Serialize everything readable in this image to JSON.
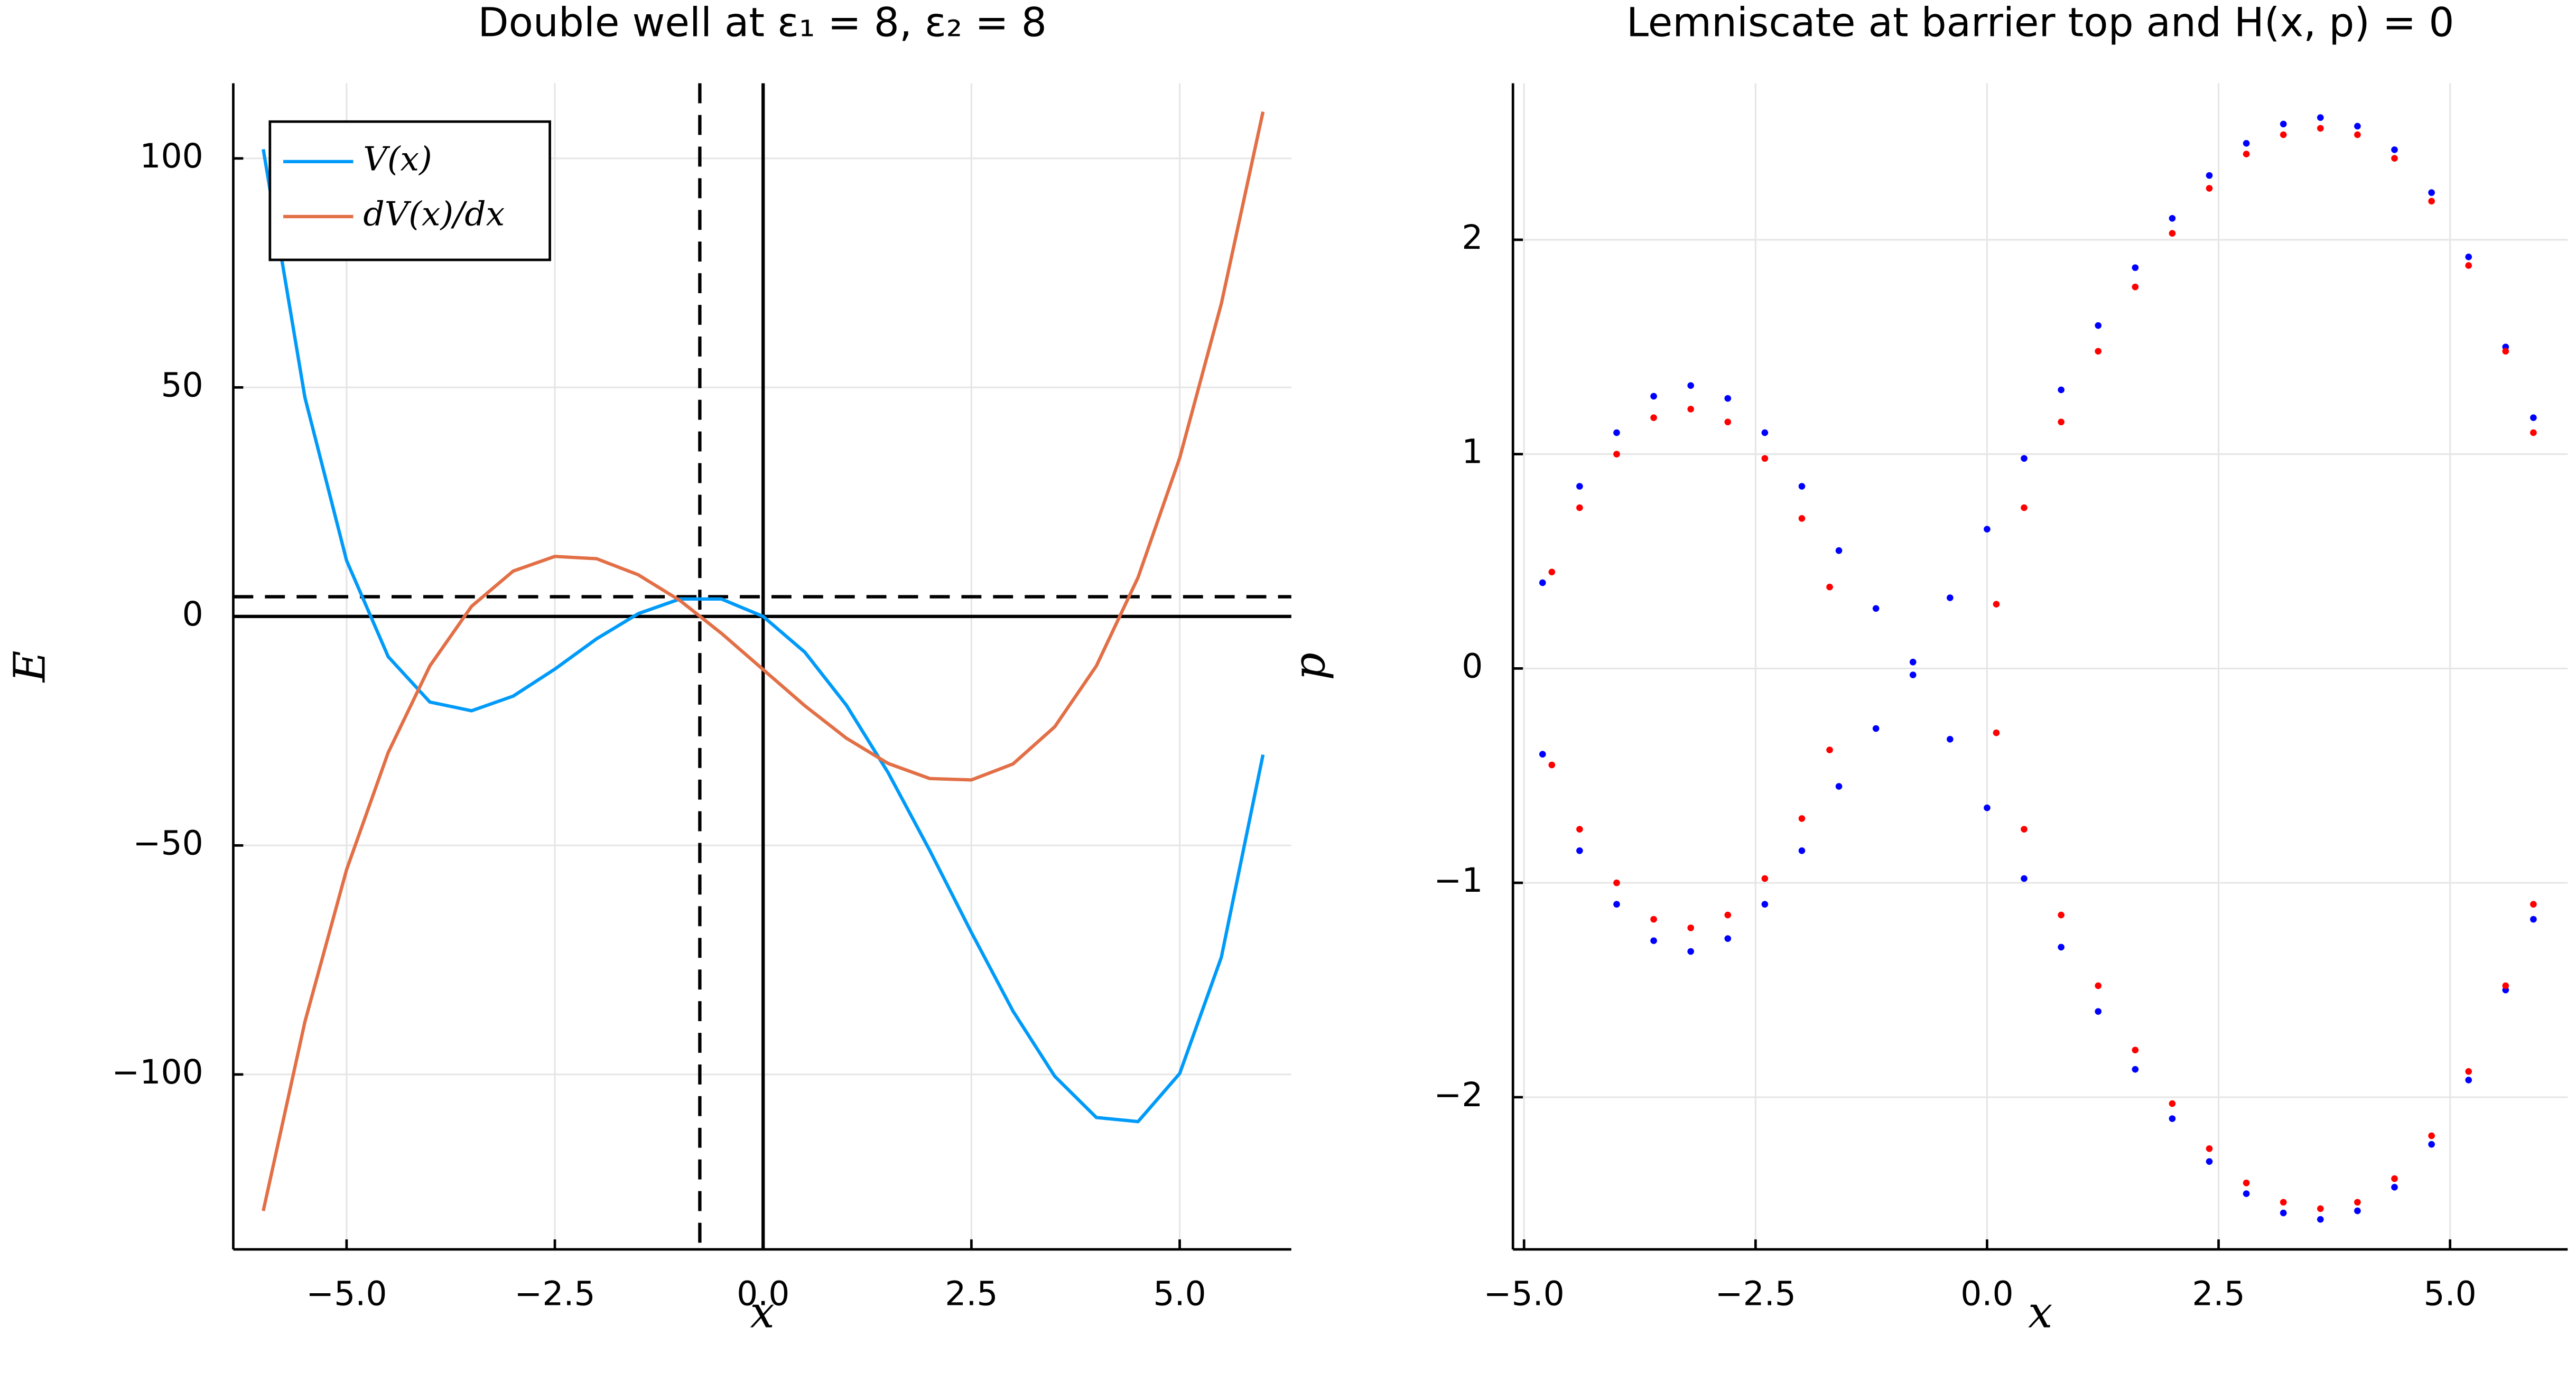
{
  "chart_data": [
    {
      "type": "line",
      "title": "Double well at ε₁ = 8, ε₂ = 8",
      "xlabel": "x",
      "ylabel": "E",
      "x": [
        -6,
        -5.5,
        -5,
        -4.5,
        -4,
        -3.5,
        -3,
        -2.5,
        -2,
        -1.5,
        -1,
        -0.5,
        0,
        0.5,
        1,
        1.5,
        2,
        2.5,
        3,
        3.5,
        4,
        4.5,
        5,
        5.5,
        6
      ],
      "series": [
        {
          "name": "V(x)",
          "color": "#009af9",
          "values": [
            102.0,
            47.8,
            12.2,
            -8.8,
            -18.7,
            -20.6,
            -17.4,
            -11.5,
            -4.9,
            0.6,
            3.8,
            3.8,
            0,
            -7.8,
            -19.4,
            -34.1,
            -51.1,
            -69.0,
            -86.2,
            -100.4,
            -109.4,
            -110.3,
            -99.8,
            -74.4,
            -30.2
          ]
        },
        {
          "name": "dV(x)/dx",
          "color": "#e26f46",
          "values": [
            -129.8,
            -88.5,
            -55.3,
            -29.7,
            -10.8,
            2.2,
            9.9,
            13.1,
            12.6,
            9.1,
            3.5,
            -3.7,
            -11.6,
            -19.5,
            -26.6,
            -32.1,
            -35.4,
            -35.7,
            -32.2,
            -24.1,
            -10.8,
            8.5,
            34.6,
            68.3,
            110.2
          ]
        }
      ],
      "reference_lines": [
        {
          "axis": "x",
          "value": -0.76,
          "dashed": true
        },
        {
          "axis": "x",
          "value": 0,
          "dashed": false
        },
        {
          "axis": "y",
          "value": 4.3,
          "dashed": true
        },
        {
          "axis": "y",
          "value": 0,
          "dashed": false
        }
      ],
      "xlim": [
        -6.36,
        6.34
      ],
      "ylim": [
        -138.2,
        116.4
      ],
      "xticks": [
        {
          "value": -5,
          "label": "−5.0"
        },
        {
          "value": -2.5,
          "label": "−2.5"
        },
        {
          "value": 0,
          "label": "0.0"
        },
        {
          "value": 2.5,
          "label": "2.5"
        },
        {
          "value": 5,
          "label": "5.0"
        }
      ],
      "yticks": [
        {
          "value": -100,
          "label": "−100"
        },
        {
          "value": -50,
          "label": "−50"
        },
        0,
        50,
        100
      ],
      "grid": true,
      "legend": "top-left"
    },
    {
      "type": "scatter",
      "title": "Lemniscate at barrier top and H(x, p) = 0",
      "xlabel": "x",
      "ylabel": "p",
      "series": [
        {
          "color": "#0000ff",
          "x": [
            -4.8,
            -4.4,
            -4.0,
            -3.6,
            -3.2,
            -2.8,
            -2.4,
            -2.0,
            -1.6,
            -1.2,
            -0.8,
            -0.4,
            0.0,
            0.4,
            0.8,
            1.2,
            1.6,
            2.0,
            2.4,
            2.8,
            3.2,
            3.6,
            4.0,
            4.4,
            4.8,
            5.2,
            5.6,
            5.9,
            -4.8,
            -4.4,
            -4.0,
            -3.6,
            -3.2,
            -2.8,
            -2.4,
            -2.0,
            -1.6,
            -1.2,
            -0.8,
            -0.4,
            0.0,
            0.4,
            0.8,
            1.2,
            1.6,
            2.0,
            2.4,
            2.8,
            3.2,
            3.6,
            4.0,
            4.4,
            4.8,
            5.2,
            5.6,
            5.9
          ],
          "values": [
            0.4,
            0.85,
            1.1,
            1.27,
            1.32,
            1.26,
            1.1,
            0.85,
            0.55,
            0.28,
            0.03,
            0.33,
            0.65,
            0.98,
            1.3,
            1.6,
            1.87,
            2.1,
            2.3,
            2.45,
            2.54,
            2.57,
            2.53,
            2.42,
            2.22,
            1.92,
            1.5,
            1.17,
            -0.4,
            -0.85,
            -1.1,
            -1.27,
            -1.32,
            -1.26,
            -1.1,
            -0.85,
            -0.55,
            -0.28,
            -0.03,
            -0.33,
            -0.65,
            -0.98,
            -1.3,
            -1.6,
            -1.87,
            -2.1,
            -2.3,
            -2.45,
            -2.54,
            -2.57,
            -2.53,
            -2.42,
            -2.22,
            -1.92,
            -1.5,
            -1.17
          ]
        },
        {
          "color": "#ff0000",
          "x": [
            -4.7,
            -4.4,
            -4.0,
            -3.6,
            -3.2,
            -2.8,
            -2.4,
            -2.0,
            -1.7,
            0.1,
            0.4,
            0.8,
            1.2,
            1.6,
            2.0,
            2.4,
            2.8,
            3.2,
            3.6,
            4.0,
            4.4,
            4.8,
            5.2,
            5.6,
            5.9,
            -4.7,
            -4.4,
            -4.0,
            -3.6,
            -3.2,
            -2.8,
            -2.4,
            -2.0,
            -1.7,
            0.1,
            0.4,
            0.8,
            1.2,
            1.6,
            2.0,
            2.4,
            2.8,
            3.2,
            3.6,
            4.0,
            4.4,
            4.8,
            5.2,
            5.6,
            5.9
          ],
          "values": [
            0.45,
            0.75,
            1.0,
            1.17,
            1.21,
            1.15,
            0.98,
            0.7,
            0.38,
            0.3,
            0.75,
            1.15,
            1.48,
            1.78,
            2.03,
            2.24,
            2.4,
            2.49,
            2.52,
            2.49,
            2.38,
            2.18,
            1.88,
            1.48,
            1.1,
            -0.45,
            -0.75,
            -1.0,
            -1.17,
            -1.21,
            -1.15,
            -0.98,
            -0.7,
            -0.38,
            -0.3,
            -0.75,
            -1.15,
            -1.48,
            -1.78,
            -2.03,
            -2.24,
            -2.4,
            -2.49,
            -2.52,
            -2.49,
            -2.38,
            -2.18,
            -1.88,
            -1.48,
            -1.1
          ]
        }
      ],
      "xlim": [
        -5.12,
        6.27
      ],
      "ylim": [
        -2.71,
        2.73
      ],
      "xticks": [
        {
          "value": -5,
          "label": "−5.0"
        },
        {
          "value": -2.5,
          "label": "−2.5"
        },
        {
          "value": 0,
          "label": "0.0"
        },
        {
          "value": 2.5,
          "label": "2.5"
        },
        {
          "value": 5,
          "label": "5.0"
        }
      ],
      "yticks": [
        {
          "value": -2,
          "label": "−2"
        },
        {
          "value": -1,
          "label": "−1"
        },
        0,
        1,
        2
      ],
      "grid": true
    }
  ]
}
